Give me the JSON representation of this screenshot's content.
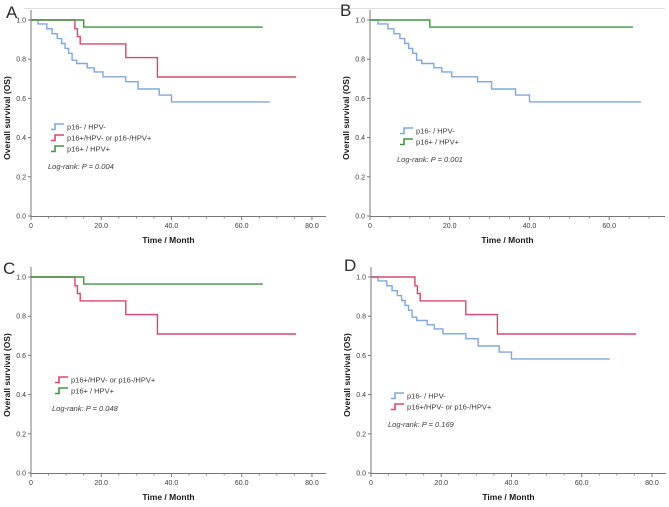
{
  "figure": {
    "description": "Kaplan-Meier overall survival curves by p16/HPV status, four panels"
  },
  "chart_data": {
    "type": "line",
    "subtype": "kaplan-meier-step",
    "title": "",
    "xlabel": "Time / Month",
    "ylabel": "Overall survival (OS)",
    "ylim": [
      0.0,
      1.0
    ],
    "yticks": [
      0.0,
      0.2,
      0.4,
      0.6,
      0.8,
      1.0
    ],
    "legend_position": "inside-left-middle",
    "grid": "off",
    "groups": {
      "p16neg_hpvneg": {
        "label": "p16- / HPV-",
        "color": "#7fa8dc",
        "points": [
          [
            0,
            1.0
          ],
          [
            2,
            0.98
          ],
          [
            4.5,
            0.955
          ],
          [
            6,
            0.93
          ],
          [
            7.5,
            0.905
          ],
          [
            8.7,
            0.88
          ],
          [
            9.7,
            0.855
          ],
          [
            10.7,
            0.83
          ],
          [
            11.7,
            0.795
          ],
          [
            13,
            0.778
          ],
          [
            16,
            0.756
          ],
          [
            18,
            0.735
          ],
          [
            20.5,
            0.71
          ],
          [
            27,
            0.685
          ],
          [
            30.5,
            0.648
          ],
          [
            36.5,
            0.617
          ],
          [
            40,
            0.582
          ],
          [
            68,
            0.582
          ]
        ]
      },
      "p16pos_hpvneg_or_p16neg_hpvpos": {
        "label": "p16+/HPV- or p16-/HPV+",
        "color": "#d6486f",
        "points": [
          [
            0,
            1.0
          ],
          [
            12.5,
            0.955
          ],
          [
            13.2,
            0.916
          ],
          [
            14,
            0.878
          ],
          [
            27,
            0.808
          ],
          [
            36,
            0.709
          ],
          [
            75.5,
            0.709
          ]
        ]
      },
      "p16pos_hpvpos": {
        "label": "p16+ / HPV+",
        "color": "#3f9640",
        "points": [
          [
            0,
            1.0
          ],
          [
            15,
            0.964
          ],
          [
            66,
            0.964
          ]
        ]
      }
    },
    "panels": [
      {
        "label": "A",
        "groups": [
          "p16neg_hpvneg",
          "p16pos_hpvneg_or_p16neg_hpvpos",
          "p16pos_hpvpos"
        ],
        "logrank": "Log-rank: P = 0.004",
        "xticks": [
          0,
          20,
          40,
          60,
          80
        ],
        "x_axis_max": 84
      },
      {
        "label": "B",
        "groups": [
          "p16neg_hpvneg",
          "p16pos_hpvpos"
        ],
        "logrank": "Log-rank: P = 0.001",
        "xticks": [
          0,
          20,
          40,
          60
        ],
        "x_axis_max": 74
      },
      {
        "label": "C",
        "groups": [
          "p16pos_hpvneg_or_p16neg_hpvpos",
          "p16pos_hpvpos"
        ],
        "logrank": "Log-rank: P = 0.048",
        "xticks": [
          0,
          20,
          40,
          60,
          80
        ],
        "x_axis_max": 84
      },
      {
        "label": "D",
        "groups": [
          "p16neg_hpvneg",
          "p16pos_hpvneg_or_p16neg_hpvpos"
        ],
        "logrank": "Log-rank: P = 0.169",
        "xticks": [
          0,
          20,
          40,
          60,
          80
        ],
        "x_axis_max": 84
      }
    ]
  }
}
